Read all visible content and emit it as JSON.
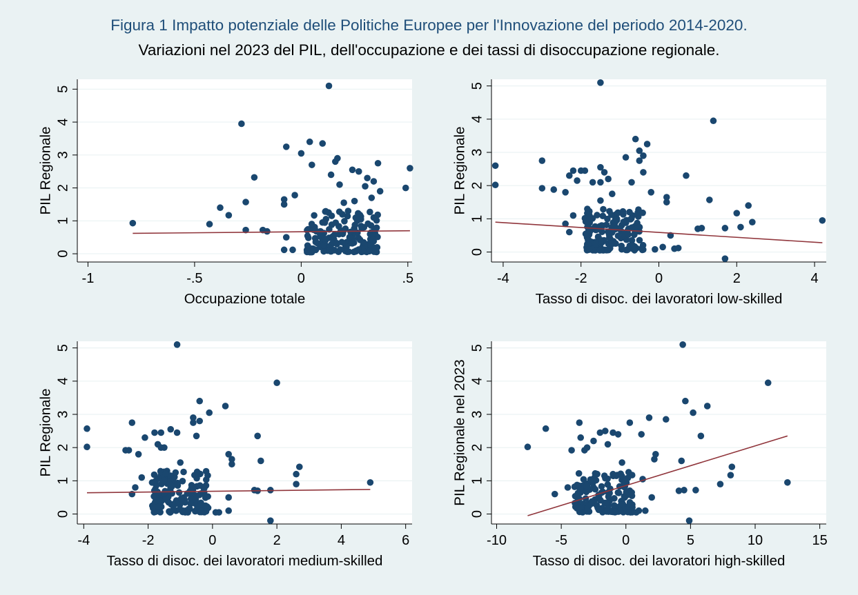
{
  "figure": {
    "title": "Figura 1 Impatto potenziale delle Politiche Europee per l'Innovazione del periodo 2014-2020.",
    "subtitle": "Variazioni nel 2023 del PIL, dell'occupazione e dei tassi di disoccupazione regionale."
  },
  "colors": {
    "background": "#eaf2f3",
    "plot_background": "#ffffff",
    "marker": "#1a476f",
    "fit_line": "#90353b",
    "grid": "#eaf2f3",
    "title": "#1f4e79"
  },
  "chart_data": [
    {
      "type": "scatter",
      "xlabel": "Occupazione totale",
      "ylabel": "PIL Regionale",
      "xlim": [
        -1.05,
        0.52
      ],
      "ylim": [
        -0.25,
        5.3
      ],
      "xticks": [
        -1,
        -0.5,
        0,
        0.5
      ],
      "xtick_labels": [
        "-1",
        "-.5",
        "0",
        ".5"
      ],
      "yticks": [
        0,
        1,
        2,
        3,
        4,
        5
      ],
      "ytick_labels": [
        "0",
        "1",
        "2",
        "3",
        "4",
        "5"
      ],
      "grid": true,
      "fit_line": {
        "x": [
          -0.79,
          0.51
        ],
        "y": [
          0.62,
          0.7
        ]
      },
      "cluster_seed": 11,
      "cluster": {
        "count": 150,
        "x_range": [
          0.02,
          0.36
        ],
        "y_range": [
          0.05,
          1.3
        ]
      },
      "points": [
        [
          0.13,
          5.1
        ],
        [
          -0.28,
          3.95
        ],
        [
          -0.07,
          3.25
        ],
        [
          0.04,
          3.4
        ],
        [
          0.1,
          3.35
        ],
        [
          0.0,
          3.05
        ],
        [
          0.17,
          2.9
        ],
        [
          0.16,
          2.8
        ],
        [
          0.05,
          2.7
        ],
        [
          0.24,
          2.55
        ],
        [
          0.27,
          2.5
        ],
        [
          0.36,
          2.75
        ],
        [
          0.51,
          2.6
        ],
        [
          0.49,
          2.0
        ],
        [
          0.37,
          1.9
        ],
        [
          0.34,
          2.2
        ],
        [
          0.31,
          2.3
        ],
        [
          0.3,
          2.05
        ],
        [
          0.18,
          2.1
        ],
        [
          0.14,
          2.4
        ],
        [
          -0.22,
          2.32
        ],
        [
          -0.08,
          1.65
        ],
        [
          -0.08,
          1.5
        ],
        [
          -0.03,
          1.78
        ],
        [
          -0.26,
          1.57
        ],
        [
          -0.38,
          1.4
        ],
        [
          -0.34,
          1.17
        ],
        [
          -0.43,
          0.9
        ],
        [
          -0.79,
          0.93
        ],
        [
          -0.26,
          0.72
        ],
        [
          -0.18,
          0.72
        ],
        [
          -0.16,
          0.68
        ],
        [
          -0.07,
          0.5
        ],
        [
          -0.08,
          0.12
        ],
        [
          -0.04,
          0.12
        ],
        [
          0.03,
          0.25
        ],
        [
          0.1,
          0.95
        ],
        [
          0.2,
          1.55
        ],
        [
          0.25,
          1.6
        ],
        [
          0.33,
          1.7
        ],
        [
          0.22,
          1.3
        ],
        [
          0.28,
          1.05
        ],
        [
          0.34,
          1.1
        ],
        [
          0.05,
          0.05
        ],
        [
          0.15,
          0.5
        ]
      ]
    },
    {
      "type": "scatter",
      "xlabel": "Tasso di disoc. dei lavoratori low-skilled",
      "ylabel": "PIL Regionale",
      "xlim": [
        -4.3,
        4.3
      ],
      "ylim": [
        -0.3,
        5.2
      ],
      "xticks": [
        -4,
        -2,
        0,
        2,
        4
      ],
      "xtick_labels": [
        "-4",
        "-2",
        "0",
        "2",
        "4"
      ],
      "yticks": [
        0,
        1,
        2,
        3,
        4,
        5
      ],
      "ytick_labels": [
        "0",
        "1",
        "2",
        "3",
        "4",
        "5"
      ],
      "grid": true,
      "fit_line": {
        "x": [
          -4.2,
          4.2
        ],
        "y": [
          0.9,
          0.28
        ]
      },
      "cluster_seed": 23,
      "cluster": {
        "count": 150,
        "x_range": [
          -1.9,
          -0.4
        ],
        "y_range": [
          0.05,
          1.3
        ]
      },
      "points": [
        [
          -1.5,
          5.1
        ],
        [
          1.4,
          3.95
        ],
        [
          -0.6,
          3.4
        ],
        [
          -0.3,
          3.25
        ],
        [
          -0.5,
          3.05
        ],
        [
          -0.4,
          2.9
        ],
        [
          -0.85,
          2.85
        ],
        [
          -0.5,
          2.75
        ],
        [
          -3.0,
          2.75
        ],
        [
          -4.2,
          2.6
        ],
        [
          -4.2,
          2.02
        ],
        [
          -3.0,
          1.92
        ],
        [
          -2.7,
          1.88
        ],
        [
          -2.2,
          2.45
        ],
        [
          -2.0,
          2.45
        ],
        [
          -1.9,
          2.45
        ],
        [
          -1.5,
          2.55
        ],
        [
          -1.4,
          2.4
        ],
        [
          -1.3,
          2.2
        ],
        [
          -0.4,
          2.4
        ],
        [
          -2.3,
          2.3
        ],
        [
          -2.1,
          2.15
        ],
        [
          -1.7,
          2.1
        ],
        [
          -1.5,
          2.1
        ],
        [
          -0.7,
          2.1
        ],
        [
          0.7,
          2.3
        ],
        [
          -2.4,
          1.8
        ],
        [
          -1.2,
          1.75
        ],
        [
          -0.2,
          1.8
        ],
        [
          0.2,
          1.65
        ],
        [
          0.2,
          1.5
        ],
        [
          1.3,
          1.57
        ],
        [
          2.3,
          1.4
        ],
        [
          2.0,
          1.17
        ],
        [
          -2.2,
          1.1
        ],
        [
          -1.5,
          1.55
        ],
        [
          1.0,
          0.7
        ],
        [
          1.1,
          0.72
        ],
        [
          2.1,
          0.75
        ],
        [
          2.4,
          0.9
        ],
        [
          1.7,
          0.72
        ],
        [
          4.2,
          0.95
        ],
        [
          1.7,
          -0.2
        ],
        [
          0.3,
          0.5
        ],
        [
          -2.4,
          0.85
        ],
        [
          -2.3,
          0.6
        ],
        [
          0.1,
          0.15
        ],
        [
          0.4,
          0.1
        ],
        [
          0.5,
          0.12
        ],
        [
          -0.1,
          0.08
        ]
      ]
    },
    {
      "type": "scatter",
      "xlabel": "Tasso di disoc. dei lavoratori medium-skilled",
      "ylabel": "PIL Regionale",
      "xlim": [
        -4.2,
        6.2
      ],
      "ylim": [
        -0.3,
        5.2
      ],
      "xticks": [
        -4,
        -2,
        0,
        2,
        4,
        6
      ],
      "xtick_labels": [
        "-4",
        "-2",
        "0",
        "2",
        "4",
        "6"
      ],
      "yticks": [
        0,
        1,
        2,
        3,
        4,
        5
      ],
      "ytick_labels": [
        "0",
        "1",
        "2",
        "3",
        "4",
        "5"
      ],
      "grid": true,
      "fit_line": {
        "x": [
          -3.9,
          4.9
        ],
        "y": [
          0.64,
          0.74
        ]
      },
      "cluster_seed": 37,
      "cluster": {
        "count": 150,
        "x_range": [
          -1.9,
          -0.1
        ],
        "y_range": [
          0.05,
          1.3
        ]
      },
      "points": [
        [
          -1.1,
          5.1
        ],
        [
          2.0,
          3.95
        ],
        [
          -0.4,
          3.4
        ],
        [
          0.4,
          3.25
        ],
        [
          -0.1,
          3.05
        ],
        [
          -0.6,
          2.9
        ],
        [
          -0.6,
          2.75
        ],
        [
          -0.4,
          2.8
        ],
        [
          -2.5,
          2.75
        ],
        [
          -3.9,
          2.57
        ],
        [
          -3.9,
          2.02
        ],
        [
          -2.7,
          1.92
        ],
        [
          -2.6,
          1.92
        ],
        [
          -2.1,
          2.3
        ],
        [
          -1.8,
          2.45
        ],
        [
          -1.6,
          2.45
        ],
        [
          -1.3,
          2.55
        ],
        [
          -1.1,
          2.45
        ],
        [
          -1.7,
          2.1
        ],
        [
          -1.6,
          2.0
        ],
        [
          -0.5,
          2.35
        ],
        [
          -2.3,
          1.8
        ],
        [
          -1.5,
          2.0
        ],
        [
          -1.0,
          1.55
        ],
        [
          0.5,
          1.8
        ],
        [
          0.6,
          1.65
        ],
        [
          0.6,
          1.5
        ],
        [
          1.4,
          2.35
        ],
        [
          1.5,
          1.6
        ],
        [
          2.6,
          1.2
        ],
        [
          2.7,
          1.42
        ],
        [
          -2.2,
          1.1
        ],
        [
          -2.4,
          0.8
        ],
        [
          -2.5,
          0.6
        ],
        [
          1.3,
          0.72
        ],
        [
          1.4,
          0.7
        ],
        [
          1.8,
          0.72
        ],
        [
          2.6,
          0.9
        ],
        [
          4.9,
          0.95
        ],
        [
          1.8,
          -0.2
        ],
        [
          0.5,
          0.5
        ],
        [
          0.1,
          0.05
        ],
        [
          0.2,
          0.05
        ],
        [
          0.5,
          0.1
        ],
        [
          -0.2,
          0.08
        ]
      ]
    },
    {
      "type": "scatter",
      "xlabel": "Tasso di disoc. dei lavoratori high-skilled",
      "ylabel": "PIL Regionale nel 2023",
      "xlim": [
        -10.4,
        15.5
      ],
      "ylim": [
        -0.3,
        5.2
      ],
      "xticks": [
        -10,
        -5,
        0,
        5,
        10,
        15
      ],
      "xtick_labels": [
        "-10",
        "-5",
        "0",
        "5",
        "10",
        "15"
      ],
      "yticks": [
        0,
        1,
        2,
        3,
        4,
        5
      ],
      "ytick_labels": [
        "0",
        "1",
        "2",
        "3",
        "4",
        "5"
      ],
      "grid": true,
      "fit_line": {
        "x": [
          -7.6,
          12.5
        ],
        "y": [
          -0.05,
          2.35
        ]
      },
      "cluster_seed": 53,
      "cluster": {
        "count": 150,
        "x_range": [
          -4.0,
          0.5
        ],
        "y_range": [
          0.05,
          1.3
        ]
      },
      "points": [
        [
          4.4,
          5.1
        ],
        [
          11.0,
          3.95
        ],
        [
          4.6,
          3.4
        ],
        [
          5.2,
          3.05
        ],
        [
          6.3,
          3.25
        ],
        [
          3.1,
          2.85
        ],
        [
          1.8,
          2.9
        ],
        [
          0.3,
          2.75
        ],
        [
          -3.6,
          2.75
        ],
        [
          -6.2,
          2.57
        ],
        [
          -7.6,
          2.02
        ],
        [
          -4.2,
          1.92
        ],
        [
          -3.2,
          1.92
        ],
        [
          -2.0,
          2.45
        ],
        [
          -1.6,
          2.5
        ],
        [
          -1.0,
          2.45
        ],
        [
          -0.6,
          2.4
        ],
        [
          -2.5,
          2.2
        ],
        [
          -3.5,
          2.3
        ],
        [
          -1.4,
          2.1
        ],
        [
          5.8,
          2.35
        ],
        [
          1.2,
          2.4
        ],
        [
          -0.3,
          1.55
        ],
        [
          2.2,
          1.65
        ],
        [
          2.3,
          1.8
        ],
        [
          4.3,
          1.6
        ],
        [
          8.2,
          1.42
        ],
        [
          8.1,
          1.17
        ],
        [
          1.3,
          1.05
        ],
        [
          7.3,
          0.9
        ],
        [
          4.1,
          0.7
        ],
        [
          4.5,
          0.72
        ],
        [
          5.4,
          0.72
        ],
        [
          12.5,
          0.95
        ],
        [
          4.9,
          -0.2
        ],
        [
          2.0,
          0.5
        ],
        [
          -4.5,
          0.8
        ],
        [
          -5.5,
          0.6
        ],
        [
          -2.5,
          1.0
        ],
        [
          -1.0,
          1.2
        ],
        [
          0.5,
          0.2
        ],
        [
          1.0,
          0.1
        ],
        [
          1.5,
          0.1
        ],
        [
          0.8,
          0.05
        ],
        [
          -3.0,
          2.0
        ]
      ]
    }
  ]
}
